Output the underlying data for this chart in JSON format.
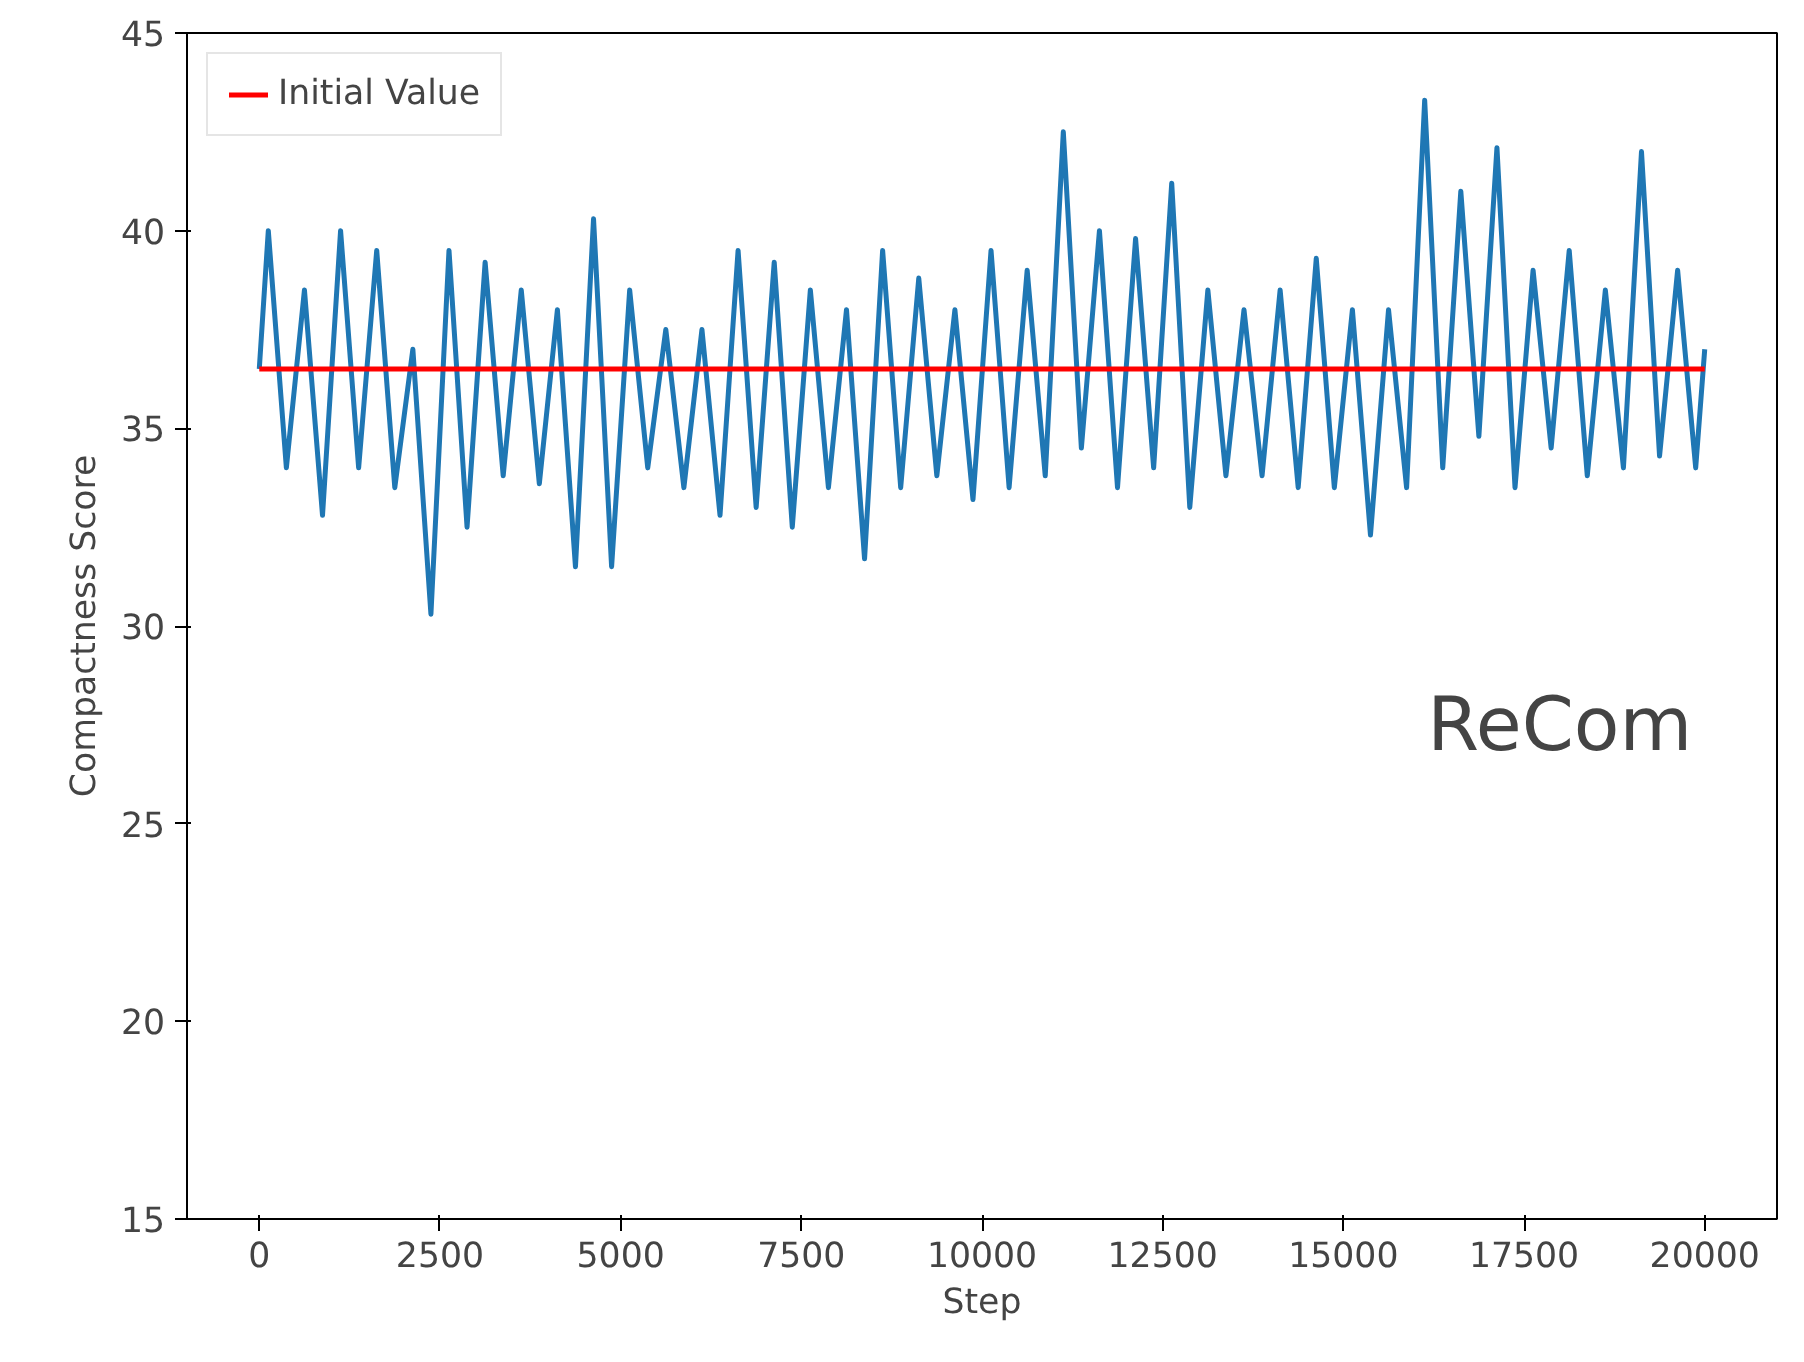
{
  "chart_data": {
    "type": "line",
    "xlabel": "Step",
    "ylabel": "Compactness Score",
    "xlim": [
      -1000,
      21000
    ],
    "ylim": [
      15,
      45
    ],
    "xticks": [
      0,
      2500,
      5000,
      7500,
      10000,
      12500,
      15000,
      17500,
      20000
    ],
    "yticks": [
      15,
      20,
      25,
      30,
      35,
      40,
      45
    ],
    "grid": false,
    "legend": "top left",
    "annotations": [
      "ReCom"
    ],
    "series": [
      {
        "color": "#1f77b4",
        "x": [
          0,
          125,
          375,
          625,
          875,
          1125,
          1375,
          1625,
          1875,
          2125,
          2375,
          2625,
          2875,
          3125,
          3375,
          3625,
          3875,
          4125,
          4375,
          4625,
          4875,
          5125,
          5375,
          5625,
          5875,
          6125,
          6375,
          6625,
          6875,
          7125,
          7375,
          7625,
          7875,
          8125,
          8375,
          8625,
          8875,
          9125,
          9375,
          9625,
          9875,
          10125,
          10375,
          10625,
          10875,
          11125,
          11375,
          11625,
          11875,
          12125,
          12375,
          12625,
          12875,
          13125,
          13375,
          13625,
          13875,
          14125,
          14375,
          14625,
          14875,
          15125,
          15375,
          15625,
          15875,
          16125,
          16375,
          16625,
          16875,
          17125,
          17375,
          17625,
          17875,
          18125,
          18375,
          18625,
          18875,
          19125,
          19375,
          19625,
          19875,
          20000
        ],
        "values": [
          36.5,
          40,
          34,
          38.5,
          32.8,
          40,
          34,
          39.5,
          33.5,
          37,
          30.3,
          39.5,
          32.5,
          39.2,
          33.8,
          38.5,
          33.6,
          38,
          31.5,
          40.3,
          31.5,
          38.5,
          34,
          37.5,
          33.5,
          37.5,
          32.8,
          39.5,
          33,
          39.2,
          32.5,
          38.5,
          33.5,
          38,
          31.7,
          39.5,
          33.5,
          38.8,
          33.8,
          38,
          33.2,
          39.5,
          33.5,
          39,
          33.8,
          42.5,
          34.5,
          40,
          33.5,
          39.8,
          34,
          41.2,
          33,
          38.5,
          33.8,
          38,
          33.8,
          38.5,
          33.5,
          39.3,
          33.5,
          38,
          32.3,
          38,
          33.5,
          43.3,
          34,
          41,
          34.8,
          42.1,
          33.5,
          39,
          34.5,
          39.5,
          33.8,
          38.5,
          34,
          42,
          34.3,
          39,
          34,
          37
        ]
      },
      {
        "name": "Initial Value",
        "color": "#ff0000",
        "x": [
          0,
          20000
        ],
        "values": [
          36.5,
          36.5
        ]
      }
    ]
  }
}
